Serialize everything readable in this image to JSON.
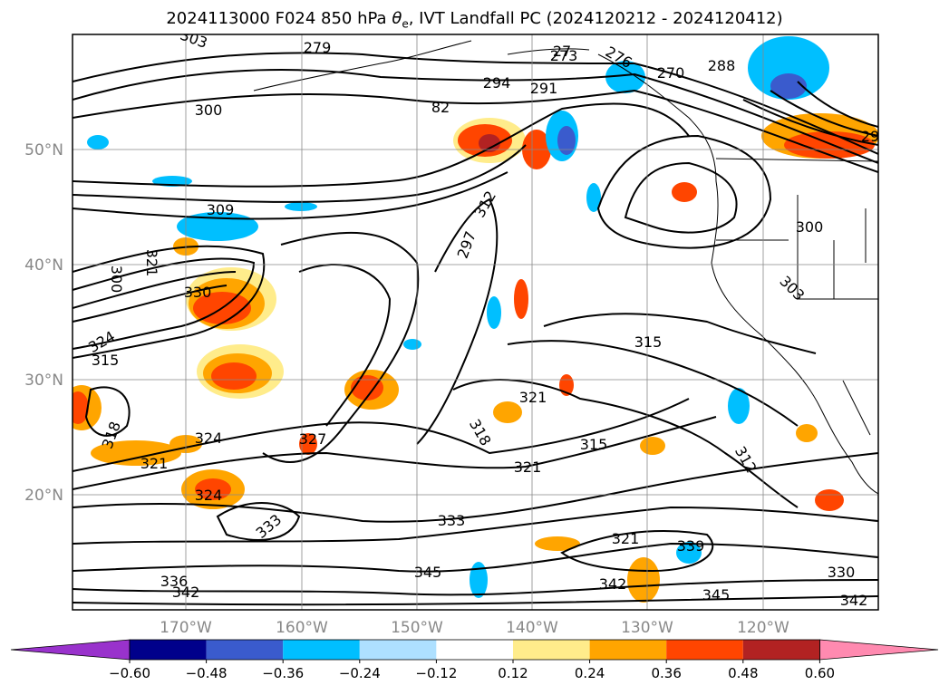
{
  "title_main": "2024113000 F024 850 hPa ",
  "title_theta": "θ",
  "title_sub": "e",
  "title_rest": ", IVT Landfall PC (2024120212 - 2024120412)",
  "lon_labels": [
    "170°W",
    "160°W",
    "150°W",
    "140°W",
    "130°W",
    "120°W"
  ],
  "lat_labels": [
    "50°N",
    "40°N",
    "30°N",
    "20°N"
  ],
  "colorbar": {
    "colors": [
      "#9932CC",
      "#00008B",
      "#3A5BCD",
      "#00BFFF",
      "#AEE0FF",
      "#FFFFFF",
      "#FFEC8B",
      "#FFA500",
      "#FF4500",
      "#B22222",
      "#FF8AB0"
    ],
    "tick_labels": [
      "−0.60",
      "−0.48",
      "−0.36",
      "−0.24",
      "−0.12",
      "0.12",
      "0.24",
      "0.36",
      "0.48",
      "0.60"
    ]
  },
  "contour_labels": [
    {
      "t": "279"
    },
    {
      "t": "273"
    },
    {
      "t": "276"
    },
    {
      "t": "270"
    },
    {
      "t": "288"
    },
    {
      "t": "294"
    },
    {
      "t": "291"
    },
    {
      "t": "300"
    },
    {
      "t": "82"
    },
    {
      "t": "303"
    },
    {
      "t": "309"
    },
    {
      "t": "312"
    },
    {
      "t": "297"
    },
    {
      "t": "300"
    },
    {
      "t": "300"
    },
    {
      "t": "303"
    },
    {
      "t": "321"
    },
    {
      "t": "330"
    },
    {
      "t": "324"
    },
    {
      "t": "315"
    },
    {
      "t": "315"
    },
    {
      "t": "321"
    },
    {
      "t": "318"
    },
    {
      "t": "318"
    },
    {
      "t": "327"
    },
    {
      "t": "324"
    },
    {
      "t": "321"
    },
    {
      "t": "324"
    },
    {
      "t": "315"
    },
    {
      "t": "321"
    },
    {
      "t": "312"
    },
    {
      "t": "333"
    },
    {
      "t": "333"
    },
    {
      "t": "321"
    },
    {
      "t": "339"
    },
    {
      "t": "336"
    },
    {
      "t": "342"
    },
    {
      "t": "345"
    },
    {
      "t": "342"
    },
    {
      "t": "345"
    },
    {
      "t": "330"
    },
    {
      "t": "342"
    },
    {
      "t": "27"
    },
    {
      "t": "29"
    }
  ]
}
